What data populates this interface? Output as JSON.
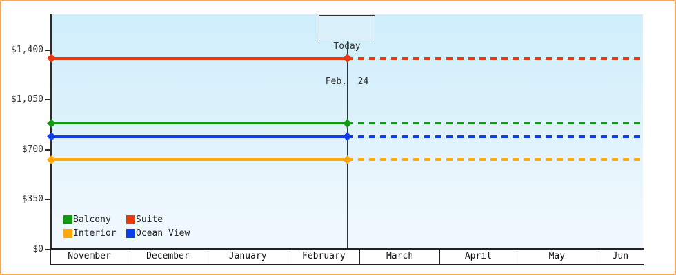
{
  "chart": {
    "today_box": {
      "line1": "Today",
      "line2": "Feb.  24"
    },
    "legend": [
      {
        "label": "Balcony",
        "color": "#119911"
      },
      {
        "label": "Suite",
        "color": "#e83a10"
      },
      {
        "label": "Interior",
        "color": "#ffa807"
      },
      {
        "label": "Ocean View",
        "color": "#0d3ceb"
      }
    ]
  },
  "chart_data": {
    "type": "line",
    "title": "",
    "xlabel": "",
    "ylabel": "",
    "ylim": [
      0,
      1650
    ],
    "grid": false,
    "legend_position": "bottom-left inside plot",
    "y_ticks": [
      {
        "label": "$0",
        "value": 0
      },
      {
        "label": "$350",
        "value": 350
      },
      {
        "label": "$700",
        "value": 700
      },
      {
        "label": "$1,050",
        "value": 1050
      },
      {
        "label": "$1,400",
        "value": 1400
      }
    ],
    "months": [
      {
        "label": "November",
        "days": 30
      },
      {
        "label": "December",
        "days": 31
      },
      {
        "label": "January",
        "days": 31
      },
      {
        "label": "February",
        "days": 28
      },
      {
        "label": "March",
        "days": 31
      },
      {
        "label": "April",
        "days": 30
      },
      {
        "label": "May",
        "days": 31
      },
      {
        "label": "Jun",
        "days": 18
      }
    ],
    "today": {
      "label": "Feb. 24",
      "day_offset": 115
    },
    "series": [
      {
        "name": "Suite",
        "color": "#e83a10",
        "value": 1340,
        "style": "flat; solid to today, dotted projection after"
      },
      {
        "name": "Balcony",
        "color": "#119911",
        "value": 885,
        "style": "flat; solid to today, dotted projection after"
      },
      {
        "name": "Ocean View",
        "color": "#0d3ceb",
        "value": 790,
        "style": "flat; solid to today, dotted projection after"
      },
      {
        "name": "Interior",
        "color": "#ffa807",
        "value": 630,
        "style": "flat; solid to today, dotted projection after"
      }
    ]
  }
}
